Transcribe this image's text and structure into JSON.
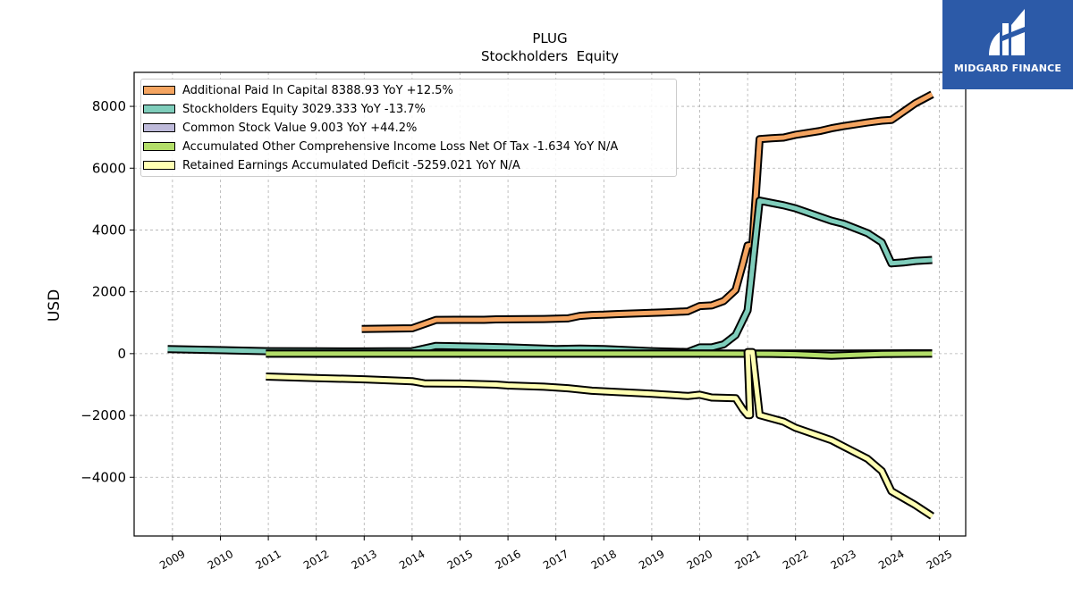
{
  "logo": {
    "name": "MIDGARD FINANCE",
    "color": "#2c5aa8"
  },
  "chart_data": {
    "type": "line",
    "title": "PLUG",
    "subtitle": "Stockholders  Equity",
    "ylabel": "USD",
    "xlabel": "",
    "xlim": [
      2008.2,
      2025.55
    ],
    "ylim": [
      -5900,
      9100
    ],
    "yticks": [
      -4000,
      -2000,
      0,
      2000,
      4000,
      6000,
      8000
    ],
    "xticks": [
      "2009",
      "2010",
      "2011",
      "2012",
      "2013",
      "2014",
      "2015",
      "2016",
      "2017",
      "2018",
      "2019",
      "2020",
      "2021",
      "2022",
      "2023",
      "2024",
      "2025"
    ],
    "grid": true,
    "legend_position": "top-left",
    "series": [
      {
        "name": "Additional Paid In Capital  8388.93 YoY +12.5%",
        "color": "#f4a460",
        "points": [
          [
            2012.95,
            800
          ],
          [
            2014.0,
            820
          ],
          [
            2014.5,
            1090
          ],
          [
            2015.5,
            1095
          ],
          [
            2015.75,
            1110
          ],
          [
            2016.75,
            1120
          ],
          [
            2017.25,
            1140
          ],
          [
            2017.5,
            1220
          ],
          [
            2017.75,
            1250
          ],
          [
            2018.0,
            1260
          ],
          [
            2018.25,
            1280
          ],
          [
            2019.25,
            1330
          ],
          [
            2019.5,
            1350
          ],
          [
            2019.75,
            1370
          ],
          [
            2020.0,
            1540
          ],
          [
            2020.25,
            1560
          ],
          [
            2020.5,
            1700
          ],
          [
            2020.75,
            2060
          ],
          [
            2020.9,
            2900
          ],
          [
            2021.0,
            3500
          ],
          [
            2021.1,
            3520
          ],
          [
            2021.25,
            6940
          ],
          [
            2021.5,
            6970
          ],
          [
            2021.75,
            6990
          ],
          [
            2022.0,
            7080
          ],
          [
            2022.5,
            7200
          ],
          [
            2022.75,
            7290
          ],
          [
            2023.0,
            7360
          ],
          [
            2023.5,
            7480
          ],
          [
            2023.8,
            7540
          ],
          [
            2024.0,
            7560
          ],
          [
            2024.5,
            8100
          ],
          [
            2024.85,
            8390
          ]
        ]
      },
      {
        "name": "Stockholders Equity  3029.333 YoY -13.7%",
        "color": "#7fcdbb",
        "points": [
          [
            2008.9,
            150
          ],
          [
            2011.0,
            80
          ],
          [
            2012.0,
            75
          ],
          [
            2013.0,
            70
          ],
          [
            2014.0,
            80
          ],
          [
            2014.5,
            250
          ],
          [
            2015.5,
            220
          ],
          [
            2016.0,
            200
          ],
          [
            2017.0,
            150
          ],
          [
            2017.5,
            160
          ],
          [
            2018.0,
            150
          ],
          [
            2019.0,
            80
          ],
          [
            2019.75,
            50
          ],
          [
            2020.0,
            200
          ],
          [
            2020.25,
            200
          ],
          [
            2020.5,
            300
          ],
          [
            2020.75,
            600
          ],
          [
            2021.0,
            1400
          ],
          [
            2021.1,
            2800
          ],
          [
            2021.25,
            4950
          ],
          [
            2021.75,
            4800
          ],
          [
            2022.0,
            4700
          ],
          [
            2022.75,
            4300
          ],
          [
            2023.0,
            4200
          ],
          [
            2023.5,
            3900
          ],
          [
            2023.8,
            3600
          ],
          [
            2024.0,
            2920
          ],
          [
            2024.25,
            2950
          ],
          [
            2024.5,
            3000
          ],
          [
            2024.85,
            3030
          ]
        ]
      },
      {
        "name": "Common Stock Value  9.003 YoY +44.2%",
        "color": "#bebada",
        "points": [
          [
            2010.95,
            0.5
          ],
          [
            2015.0,
            1
          ],
          [
            2018.0,
            2
          ],
          [
            2020.0,
            3.5
          ],
          [
            2021.0,
            5.8
          ],
          [
            2022.0,
            5.9
          ],
          [
            2023.0,
            6.0
          ],
          [
            2023.8,
            6.2
          ],
          [
            2024.85,
            9
          ]
        ]
      },
      {
        "name": "Accumulated Other Comprehensive Income Loss Net Of Tax  -1.634 YoY N/A",
        "color": "#b3de69",
        "points": [
          [
            2010.95,
            0
          ],
          [
            2015.0,
            0
          ],
          [
            2020.0,
            0
          ],
          [
            2021.0,
            -5
          ],
          [
            2021.5,
            -8
          ],
          [
            2022.0,
            -20
          ],
          [
            2022.75,
            -70
          ],
          [
            2023.25,
            -40
          ],
          [
            2023.8,
            -10
          ],
          [
            2024.85,
            -1.6
          ]
        ]
      },
      {
        "name": "Retained Earnings Accumulated Deficit  -5259.021 YoY N/A",
        "color": "#ffffb3",
        "points": [
          [
            2010.95,
            -740
          ],
          [
            2012.0,
            -790
          ],
          [
            2013.0,
            -830
          ],
          [
            2014.0,
            -890
          ],
          [
            2014.25,
            -960
          ],
          [
            2015.0,
            -970
          ],
          [
            2015.75,
            -1000
          ],
          [
            2016.0,
            -1030
          ],
          [
            2016.75,
            -1070
          ],
          [
            2017.25,
            -1120
          ],
          [
            2017.75,
            -1200
          ],
          [
            2018.25,
            -1240
          ],
          [
            2019.0,
            -1300
          ],
          [
            2019.75,
            -1370
          ],
          [
            2020.0,
            -1330
          ],
          [
            2020.25,
            -1420
          ],
          [
            2020.75,
            -1440
          ],
          [
            2020.9,
            -1800
          ],
          [
            2021.0,
            -1990
          ],
          [
            2021.05,
            -1990
          ],
          [
            2021.0,
            50
          ],
          [
            2021.1,
            50
          ],
          [
            2021.25,
            -1990
          ],
          [
            2021.75,
            -2200
          ],
          [
            2022.0,
            -2400
          ],
          [
            2022.75,
            -2800
          ],
          [
            2023.0,
            -3000
          ],
          [
            2023.5,
            -3400
          ],
          [
            2023.8,
            -3800
          ],
          [
            2024.0,
            -4450
          ],
          [
            2024.5,
            -4900
          ],
          [
            2024.85,
            -5259
          ]
        ]
      }
    ]
  }
}
